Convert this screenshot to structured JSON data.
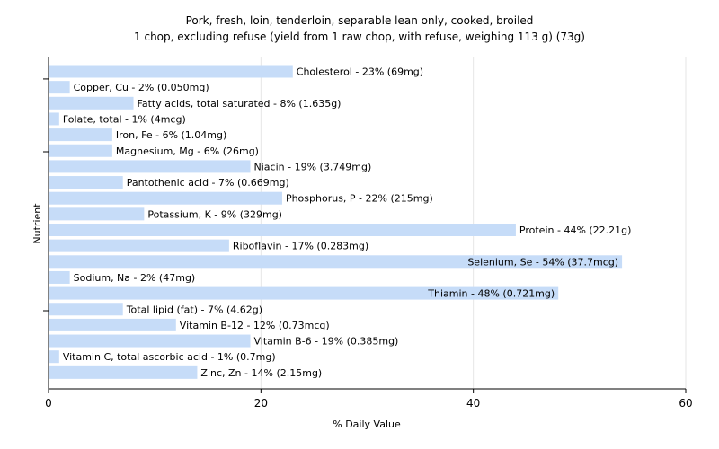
{
  "chart_data": {
    "type": "bar",
    "orientation": "horizontal",
    "title": [
      "Pork, fresh, loin, tenderloin, separable lean only, cooked, broiled",
      "1 chop, excluding refuse (yield from 1 raw chop, with refuse, weighing 113 g) (73g)"
    ],
    "xlabel": "% Daily Value",
    "ylabel": "Nutrient",
    "xlim": [
      0,
      60
    ],
    "xticks": [
      0,
      20,
      40,
      60
    ],
    "grid": true,
    "bar_color": "#c6dcf8",
    "categories": [
      "Cholesterol",
      "Copper, Cu",
      "Fatty acids, total saturated",
      "Folate, total",
      "Iron, Fe",
      "Magnesium, Mg",
      "Niacin",
      "Pantothenic acid",
      "Phosphorus, P",
      "Potassium, K",
      "Protein",
      "Riboflavin",
      "Selenium, Se",
      "Sodium, Na",
      "Thiamin",
      "Total lipid (fat)",
      "Vitamin B-12",
      "Vitamin B-6",
      "Vitamin C, total ascorbic acid",
      "Zinc, Zn"
    ],
    "values": [
      23,
      2,
      8,
      1,
      6,
      6,
      19,
      7,
      22,
      9,
      44,
      17,
      54,
      2,
      48,
      7,
      12,
      19,
      1,
      14
    ],
    "labels": [
      "Cholesterol - 23% (69mg)",
      "Copper, Cu - 2% (0.050mg)",
      "Fatty acids, total saturated - 8% (1.635g)",
      "Folate, total - 1% (4mcg)",
      "Iron, Fe - 6% (1.04mg)",
      "Magnesium, Mg - 6% (26mg)",
      "Niacin - 19% (3.749mg)",
      "Pantothenic acid - 7% (0.669mg)",
      "Phosphorus, P - 22% (215mg)",
      "Potassium, K - 9% (329mg)",
      "Protein - 44% (22.21g)",
      "Riboflavin - 17% (0.283mg)",
      "Selenium, Se - 54% (37.7mcg)",
      "Sodium, Na - 2% (47mg)",
      "Thiamin - 48% (0.721mg)",
      "Total lipid (fat) - 7% (4.62g)",
      "Vitamin B-12 - 12% (0.73mcg)",
      "Vitamin B-6 - 19% (0.385mg)",
      "Vitamin C, total ascorbic acid - 1% (0.7mg)",
      "Zinc, Zn - 14% (2.15mg)"
    ]
  }
}
